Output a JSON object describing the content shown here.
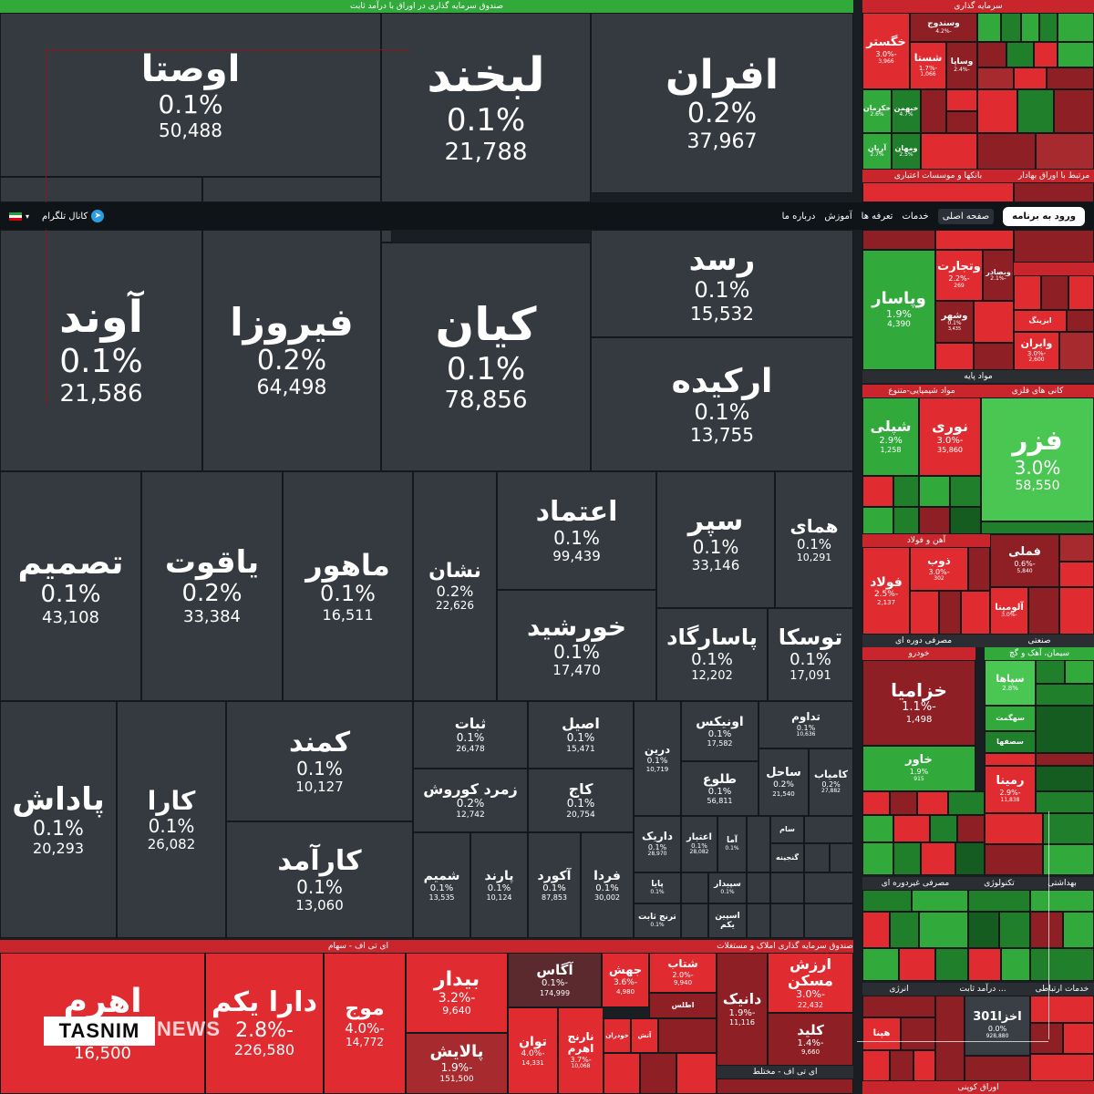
{
  "sectors": {
    "fixed_income": "صندوق سرمایه گذاری در اوراق با درآمد ثابت",
    "investment": "سرمایه گذاری",
    "banks": "بانکها و موسسات اعتباری",
    "bonds": "مرتبط با اوراق بهادار",
    "base_materials": "مواد پایه",
    "chemical": "مواد شیمیایی-متنوع",
    "metals": "کانی های فلزی",
    "iron_steel": "آهن و فولاد",
    "periodic_consumer": "مصرفی دوره ای",
    "industrial": "صنعتی",
    "auto": "خودرو",
    "cement": "سیمان، آهک و گچ",
    "non_periodic": "مصرفی غیردوره ای",
    "tech": "تکنولوژی",
    "health": "بهداشتی",
    "energy": "انرژی",
    "fixed2": "... درآمد ثابت",
    "telecom": "خدمات ارتباطی",
    "etf": "ای تی اف - سهام",
    "property": "صندوق سرمایه گذاری املاک و مستغلات",
    "etf_mixed": "ای تی اف - مختلط",
    "bonds_small": "اوراق کوپنی"
  },
  "nav": {
    "login": "ورود به برنامه",
    "home": "صفحه اصلی",
    "services": "خدمات",
    "pricing": "تعرفه ها",
    "education": "آموزش",
    "about": "درباره ما",
    "telegram": "کانال تلگرام"
  },
  "tiles": {
    "ousta": {
      "name": "اوصتا",
      "pct": "0.1%",
      "val": "50,488"
    },
    "labkhand": {
      "name": "لبخند",
      "pct": "0.1%",
      "val": "21,788"
    },
    "afran": {
      "name": "افران",
      "pct": "0.2%",
      "val": "37,967"
    },
    "avand": {
      "name": "آوند",
      "pct": "0.1%",
      "val": "21,586"
    },
    "firouza": {
      "name": "فیروزا",
      "pct": "0.2%",
      "val": "64,498"
    },
    "kian": {
      "name": "کیان",
      "pct": "0.1%",
      "val": "78,856"
    },
    "rosd": {
      "name": "رسد",
      "pct": "0.1%",
      "val": "15,532"
    },
    "orkideh": {
      "name": "ارکیده",
      "pct": "0.1%",
      "val": "13,755"
    },
    "tasmim": {
      "name": "تصمیم",
      "pct": "0.1%",
      "val": "43,108"
    },
    "yaghout": {
      "name": "یاقوت",
      "pct": "0.2%",
      "val": "33,384"
    },
    "mahour": {
      "name": "ماهور",
      "pct": "0.1%",
      "val": "16,511"
    },
    "neshan": {
      "name": "نشان",
      "pct": "0.2%",
      "val": "22,626"
    },
    "etemad": {
      "name": "اعتماد",
      "pct": "0.1%",
      "val": "99,439"
    },
    "separ": {
      "name": "سپر",
      "pct": "0.1%",
      "val": "33,146"
    },
    "homay": {
      "name": "همای",
      "pct": "0.1%",
      "val": "10,291"
    },
    "khorshid": {
      "name": "خورشید",
      "pct": "0.1%",
      "val": "17,470"
    },
    "pasargad": {
      "name": "پاسارگاد",
      "pct": "0.1%",
      "val": "12,202"
    },
    "touska": {
      "name": "توسکا",
      "pct": "0.1%",
      "val": "17,091"
    },
    "padash": {
      "name": "پاداش",
      "pct": "0.1%",
      "val": "20,293"
    },
    "kara": {
      "name": "کارا",
      "pct": "0.1%",
      "val": "26,082"
    },
    "kamand": {
      "name": "کمند",
      "pct": "0.1%",
      "val": "10,127"
    },
    "karamad": {
      "name": "کارآمد",
      "pct": "0.1%",
      "val": "13,060"
    },
    "sabat": {
      "name": "ثبات",
      "pct": "0.1%",
      "val": "26,478"
    },
    "asil": {
      "name": "اصیل",
      "pct": "0.1%",
      "val": "15,471"
    },
    "darin": {
      "name": "درین",
      "pct": "0.1%",
      "val": "10,719"
    },
    "onix": {
      "name": "اونیکس",
      "pct": "0.1%",
      "val": "17,582"
    },
    "tadavom": {
      "name": "تداوم",
      "pct": "0.1%",
      "val": "10,636"
    },
    "zomorod": {
      "name": "زمرد کوروش",
      "pct": "0.2%",
      "val": "12,742"
    },
    "kaj": {
      "name": "کاج",
      "pct": "0.1%",
      "val": "20,754"
    },
    "toloo": {
      "name": "طلوع",
      "pct": "0.1%",
      "val": "56,811"
    },
    "sahel": {
      "name": "ساحل",
      "pct": "0.2%",
      "val": "21,540"
    },
    "kamyab": {
      "name": "کامیاب",
      "pct": "0.2%",
      "val": "27,882"
    },
    "darik": {
      "name": "داریک",
      "pct": "0.1%",
      "val": "28,970"
    },
    "etebar": {
      "name": "اعتبار",
      "pct": "0.1%",
      "val": "28,082"
    },
    "ama": {
      "name": "آما",
      "pct": "0.1%",
      "val": ""
    },
    "sam": {
      "name": "سام",
      "pct": "",
      "val": ""
    },
    "shamim": {
      "name": "شمیم",
      "pct": "0.1%",
      "val": "13,535"
    },
    "parand": {
      "name": "پارند",
      "pct": "0.1%",
      "val": "10,124"
    },
    "akord": {
      "name": "آکورد",
      "pct": "0.1%",
      "val": "87,853"
    },
    "farda": {
      "name": "فردا",
      "pct": "0.1%",
      "val": "30,002"
    },
    "papa": {
      "name": "پایا",
      "pct": "0.1%",
      "val": ""
    },
    "sepidar": {
      "name": "سپیدار",
      "pct": "0.1%",
      "val": ""
    },
    "toranj": {
      "name": "ترنج ثابت",
      "pct": "0.1%",
      "val": ""
    },
    "espin": {
      "name": "اسپین یکم",
      "pct": "",
      "val": ""
    },
    "ganjineh": {
      "name": "گنجینه",
      "pct": "",
      "val": ""
    },
    "ahrom": {
      "name": "اهرم",
      "pct": "",
      "val": "16,500"
    },
    "darayekom": {
      "name": "دارا یکم",
      "pct": "-2.8%",
      "val": "226,580"
    },
    "mowj": {
      "name": "موج",
      "pct": "-4.0%",
      "val": "14,772"
    },
    "bidar": {
      "name": "بیدار",
      "pct": "-3.2%",
      "val": "9,640"
    },
    "palayesh": {
      "name": "پالایش",
      "pct": "-1.9%",
      "val": "151,500"
    },
    "agas": {
      "name": "آگاس",
      "pct": "-0.1%",
      "val": "174,999"
    },
    "jahesh": {
      "name": "جهش",
      "pct": "-3.6%",
      "val": "4,980"
    },
    "shetab": {
      "name": "شتاب",
      "pct": "-2.0%",
      "val": "9,940"
    },
    "atlas": {
      "name": "اطلس",
      "pct": "",
      "val": ""
    },
    "tavan": {
      "name": "توان",
      "pct": "-4.0%",
      "val": "14,331"
    },
    "naranj": {
      "name": "نارنج اهرم",
      "pct": "-3.7%",
      "val": "10,068"
    },
    "khodran": {
      "name": "خودران",
      "pct": "",
      "val": ""
    },
    "atash": {
      "name": "آتش",
      "pct": "",
      "val": ""
    },
    "danik": {
      "name": "دانیک",
      "pct": "-1.9%",
      "val": "11,116"
    },
    "arzesh": {
      "name": "ارزش مسکن",
      "pct": "-3.0%",
      "val": "22,432"
    },
    "kelid": {
      "name": "کلید",
      "pct": "-1.4%",
      "val": "9,660"
    },
    "khegostar": {
      "name": "خگستر",
      "pct": "-3.0%",
      "val": "3,966"
    },
    "vasandooj": {
      "name": "وسندوج",
      "pct": "-4.2%",
      "val": ""
    },
    "shasta": {
      "name": "شستا",
      "pct": "-1.7%",
      "val": "1,066"
    },
    "vesapa": {
      "name": "وساپا",
      "pct": "-2.4%",
      "val": ""
    },
    "khekarman": {
      "name": "خکرمان",
      "pct": "2.6%",
      "val": ""
    },
    "khebahman": {
      "name": "خبهمن",
      "pct": "4.7%",
      "val": ""
    },
    "aryan": {
      "name": "آریان",
      "pct": "2.7%",
      "val": ""
    },
    "vemehan": {
      "name": "ومهان",
      "pct": "2.5%",
      "val": ""
    },
    "vepasar": {
      "name": "وپاسار",
      "pct": "1.9%",
      "val": "4,390"
    },
    "vetejarat": {
      "name": "وتجارت",
      "pct": "-2.2%",
      "val": "269"
    },
    "vesapahr": {
      "name": "وبصادر",
      "pct": "-2.1%",
      "val": ""
    },
    "vshahr": {
      "name": "وشهر",
      "pct": "0.1%",
      "val": "3,435"
    },
    "vairan": {
      "name": "وایران",
      "pct": "-3.0%",
      "val": "2,600"
    },
    "izing": {
      "name": "ایزینگ",
      "pct": "",
      "val": ""
    },
    "shipli": {
      "name": "شپلی",
      "pct": "2.9%",
      "val": "1,258"
    },
    "noori": {
      "name": "نوری",
      "pct": "-3.0%",
      "val": "35,860"
    },
    "fezar": {
      "name": "فزر",
      "pct": "3.0%",
      "val": "58,550"
    },
    "fouladh": {
      "name": "فولاد",
      "pct": "-2.5%",
      "val": "2,137"
    },
    "zob": {
      "name": "ذوب",
      "pct": "-3.0%",
      "val": "302"
    },
    "fameli": {
      "name": "فملی",
      "pct": "-0.6%",
      "val": "5,840"
    },
    "alomina": {
      "name": "آلومینا",
      "pct": "-3.0%",
      "val": ""
    },
    "khazamia": {
      "name": "خزامیا",
      "pct": "-1.1%",
      "val": "1,498"
    },
    "khavar": {
      "name": "خاور",
      "pct": "1.9%",
      "val": "915"
    },
    "sasaha": {
      "name": "سپاها",
      "pct": "2.8%",
      "val": ""
    },
    "sahekmat": {
      "name": "سهگمت",
      "pct": "",
      "val": ""
    },
    "sasfahan": {
      "name": "سصفها",
      "pct": "",
      "val": ""
    },
    "remina": {
      "name": "رمینا",
      "pct": "-2.9%",
      "val": "11,838"
    },
    "akhza": {
      "name": "اخزا301",
      "pct": "0.0%",
      "val": "928,880"
    },
    "hibna": {
      "name": "هپنا",
      "pct": "",
      "val": ""
    },
    "tasnim": "TASNIM",
    "news": "NEWS"
  }
}
